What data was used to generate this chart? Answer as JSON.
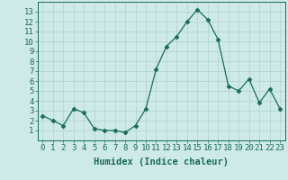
{
  "xlabel": "Humidex (Indice chaleur)",
  "x": [
    0,
    1,
    2,
    3,
    4,
    5,
    6,
    7,
    8,
    9,
    10,
    11,
    12,
    13,
    14,
    15,
    16,
    17,
    18,
    19,
    20,
    21,
    22,
    23
  ],
  "y": [
    2.5,
    2.0,
    1.5,
    3.2,
    2.8,
    1.2,
    1.0,
    1.0,
    0.8,
    1.5,
    3.2,
    7.2,
    9.5,
    10.5,
    12.0,
    13.2,
    12.2,
    10.2,
    5.5,
    5.0,
    6.2,
    3.8,
    5.2,
    3.2
  ],
  "line_color": "#1a6b5a",
  "marker": "D",
  "marker_size": 2.5,
  "bg_color": "#cdeae8",
  "grid_color": "#b0d0ce",
  "ylim": [
    0,
    14
  ],
  "xlim": [
    -0.5,
    23.5
  ],
  "yticks": [
    1,
    2,
    3,
    4,
    5,
    6,
    7,
    8,
    9,
    10,
    11,
    12,
    13
  ],
  "xticks": [
    0,
    1,
    2,
    3,
    4,
    5,
    6,
    7,
    8,
    9,
    10,
    11,
    12,
    13,
    14,
    15,
    16,
    17,
    18,
    19,
    20,
    21,
    22,
    23
  ],
  "xtick_labels": [
    "0",
    "1",
    "2",
    "3",
    "4",
    "5",
    "6",
    "7",
    "8",
    "9",
    "10",
    "11",
    "12",
    "13",
    "14",
    "15",
    "16",
    "17",
    "18",
    "19",
    "20",
    "21",
    "22",
    "23"
  ],
  "label_fontsize": 7.5,
  "tick_fontsize": 6.5
}
